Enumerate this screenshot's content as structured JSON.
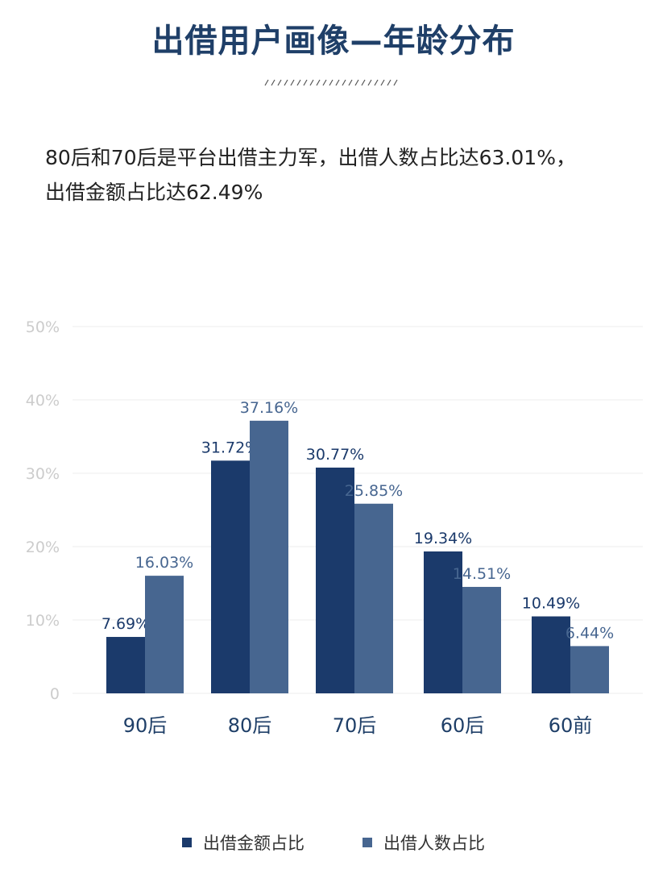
{
  "header": {
    "title": "出借用户画像—年龄分布"
  },
  "summary": {
    "line1": "80后和70后是平台出借主力军，出借人数占比达63.01%，",
    "line2": "出借金额占比达62.49%"
  },
  "chart_data": {
    "type": "bar",
    "categories": [
      "90后",
      "80后",
      "70后",
      "60后",
      "60前"
    ],
    "series": [
      {
        "name": "出借金额占比",
        "values": [
          7.69,
          31.72,
          30.77,
          19.34,
          10.49
        ],
        "labels": [
          "7.69%",
          "31.72%",
          "30.77%",
          "19.34%",
          "10.49%"
        ],
        "color": "#1b3a6b"
      },
      {
        "name": "出借人数占比",
        "values": [
          16.03,
          37.16,
          25.85,
          14.51,
          6.44
        ],
        "labels": [
          "16.03%",
          "37.16%",
          "25.85%",
          "14.51%",
          "6.44%"
        ],
        "color": "#476690"
      }
    ],
    "ylim": [
      0,
      50
    ],
    "yticks": [
      "0",
      "10%",
      "20%",
      "30%",
      "40%",
      "50%"
    ],
    "grid": true,
    "legend_position": "bottom"
  },
  "colors": {
    "title": "#1f3f68",
    "grid": "#eeeeee",
    "tick_text": "#cccccc"
  }
}
